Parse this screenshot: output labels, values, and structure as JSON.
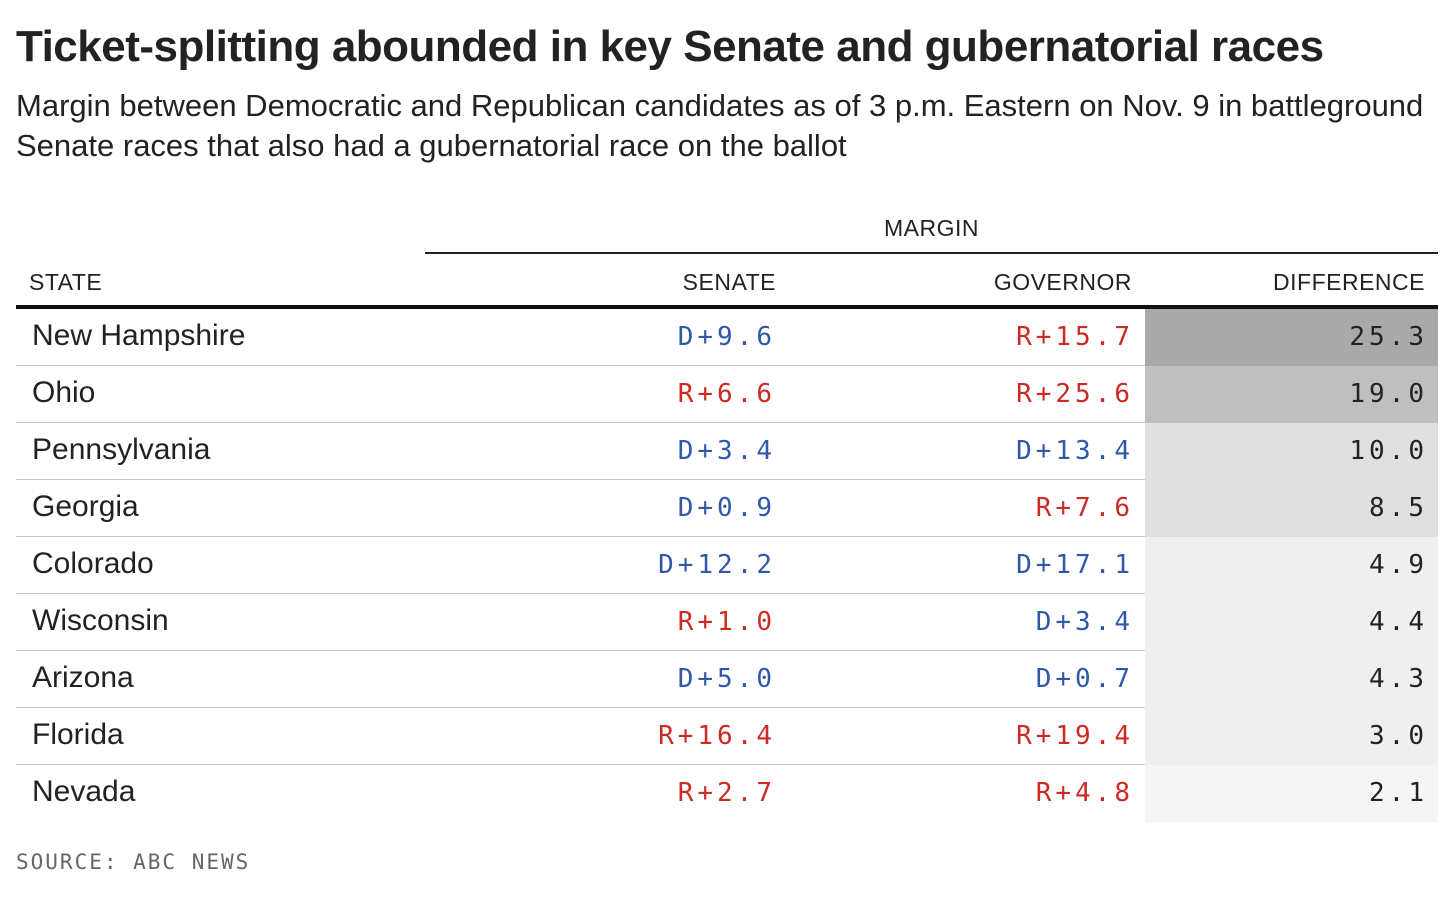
{
  "header": {
    "title": "Ticket-splitting abounded in key Senate and gubernatorial races",
    "subtitle": "Margin between Democratic and Republican candidates as of 3 p.m. Eastern on Nov. 9 in battleground Senate races that also had a gubernatorial race on the ballot"
  },
  "table": {
    "group_label": "MARGIN",
    "columns": [
      "STATE",
      "SENATE",
      "GOVERNOR",
      "DIFFERENCE"
    ],
    "rows": [
      {
        "state": "New Hampshire",
        "senate": "D+9.6",
        "governor": "R+15.7",
        "difference": "25.3"
      },
      {
        "state": "Ohio",
        "senate": "R+6.6",
        "governor": "R+25.6",
        "difference": "19.0"
      },
      {
        "state": "Pennsylvania",
        "senate": "D+3.4",
        "governor": "D+13.4",
        "difference": "10.0"
      },
      {
        "state": "Georgia",
        "senate": "D+0.9",
        "governor": "R+7.6",
        "difference": "8.5"
      },
      {
        "state": "Colorado",
        "senate": "D+12.2",
        "governor": "D+17.1",
        "difference": "4.9"
      },
      {
        "state": "Wisconsin",
        "senate": "R+1.0",
        "governor": "D+3.4",
        "difference": "4.4"
      },
      {
        "state": "Arizona",
        "senate": "D+5.0",
        "governor": "D+0.7",
        "difference": "4.3"
      },
      {
        "state": "Florida",
        "senate": "R+16.4",
        "governor": "R+19.4",
        "difference": "3.0"
      },
      {
        "state": "Nevada",
        "senate": "R+2.7",
        "governor": "R+4.8",
        "difference": "2.1"
      }
    ]
  },
  "colors": {
    "democrat": "#2f58a8",
    "republican": "#cc2a22",
    "difference_shades": [
      "#a9a9a9",
      "#bfbfbf",
      "#e0e0e0",
      "#e0e0e0",
      "#efefef",
      "#efefef",
      "#efefef",
      "#efefef",
      "#f5f5f5"
    ]
  },
  "footer": {
    "source": "SOURCE: ABC NEWS"
  },
  "chart_data": {
    "type": "table",
    "title": "Ticket-splitting abounded in key Senate and gubernatorial races",
    "subtitle": "Margin between Democratic and Republican candidates as of 3 p.m. Eastern on Nov. 9 in battleground Senate races that also had a gubernatorial race on the ballot",
    "columns": [
      "STATE",
      "SENATE",
      "GOVERNOR",
      "DIFFERENCE"
    ],
    "categories": [
      "New Hampshire",
      "Ohio",
      "Pennsylvania",
      "Georgia",
      "Colorado",
      "Wisconsin",
      "Arizona",
      "Florida",
      "Nevada"
    ],
    "series": [
      {
        "name": "SENATE",
        "values": [
          "D+9.6",
          "R+6.6",
          "D+3.4",
          "D+0.9",
          "D+12.2",
          "R+1.0",
          "D+5.0",
          "R+16.4",
          "R+2.7"
        ]
      },
      {
        "name": "GOVERNOR",
        "values": [
          "R+15.7",
          "R+25.6",
          "D+13.4",
          "R+7.6",
          "D+17.1",
          "D+3.4",
          "D+0.7",
          "R+19.4",
          "R+4.8"
        ]
      },
      {
        "name": "DIFFERENCE",
        "values": [
          25.3,
          19.0,
          10.0,
          8.5,
          4.9,
          4.4,
          4.3,
          3.0,
          2.1
        ]
      }
    ],
    "source": "SOURCE: ABC NEWS"
  }
}
